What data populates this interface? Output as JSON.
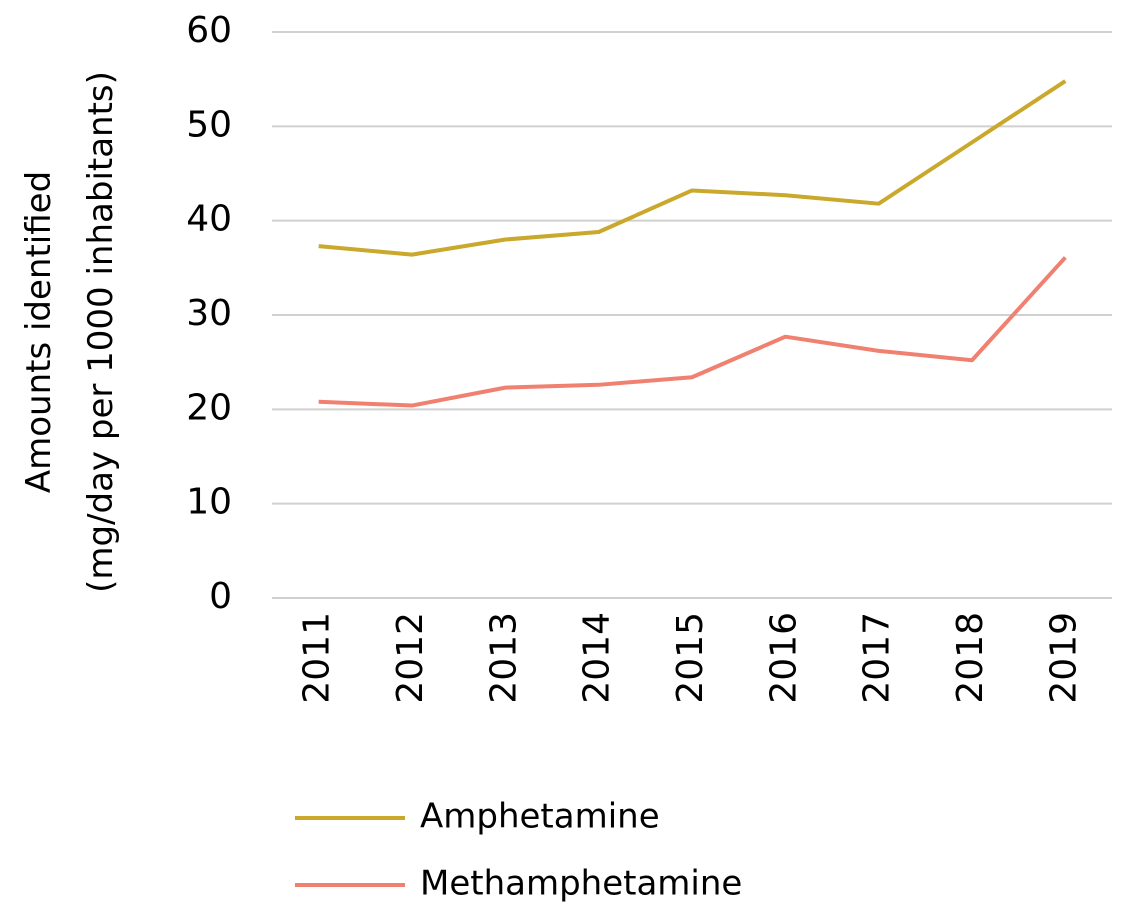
{
  "chart_data": {
    "type": "line",
    "y_label": [
      "Amounts identified",
      "(mg/day per 1000 inhabitants)"
    ],
    "categories": [
      "2011",
      "2012",
      "2013",
      "2014",
      "2015",
      "2016",
      "2017",
      "2018",
      "2019"
    ],
    "series": [
      {
        "name": "Amphetamine",
        "color": "#c9a82c",
        "values": [
          37.3,
          36.4,
          38.0,
          38.8,
          43.2,
          42.7,
          41.8,
          48.3,
          54.8
        ]
      },
      {
        "name": "Methamphetamine",
        "color": "#f08070",
        "values": [
          20.8,
          20.4,
          22.3,
          22.6,
          23.4,
          27.7,
          26.2,
          25.2,
          36.1
        ]
      }
    ],
    "ylim": [
      0,
      60
    ],
    "yticks": [
      0,
      10,
      20,
      30,
      40,
      50,
      60
    ],
    "grid": true,
    "legend": "bottom"
  }
}
